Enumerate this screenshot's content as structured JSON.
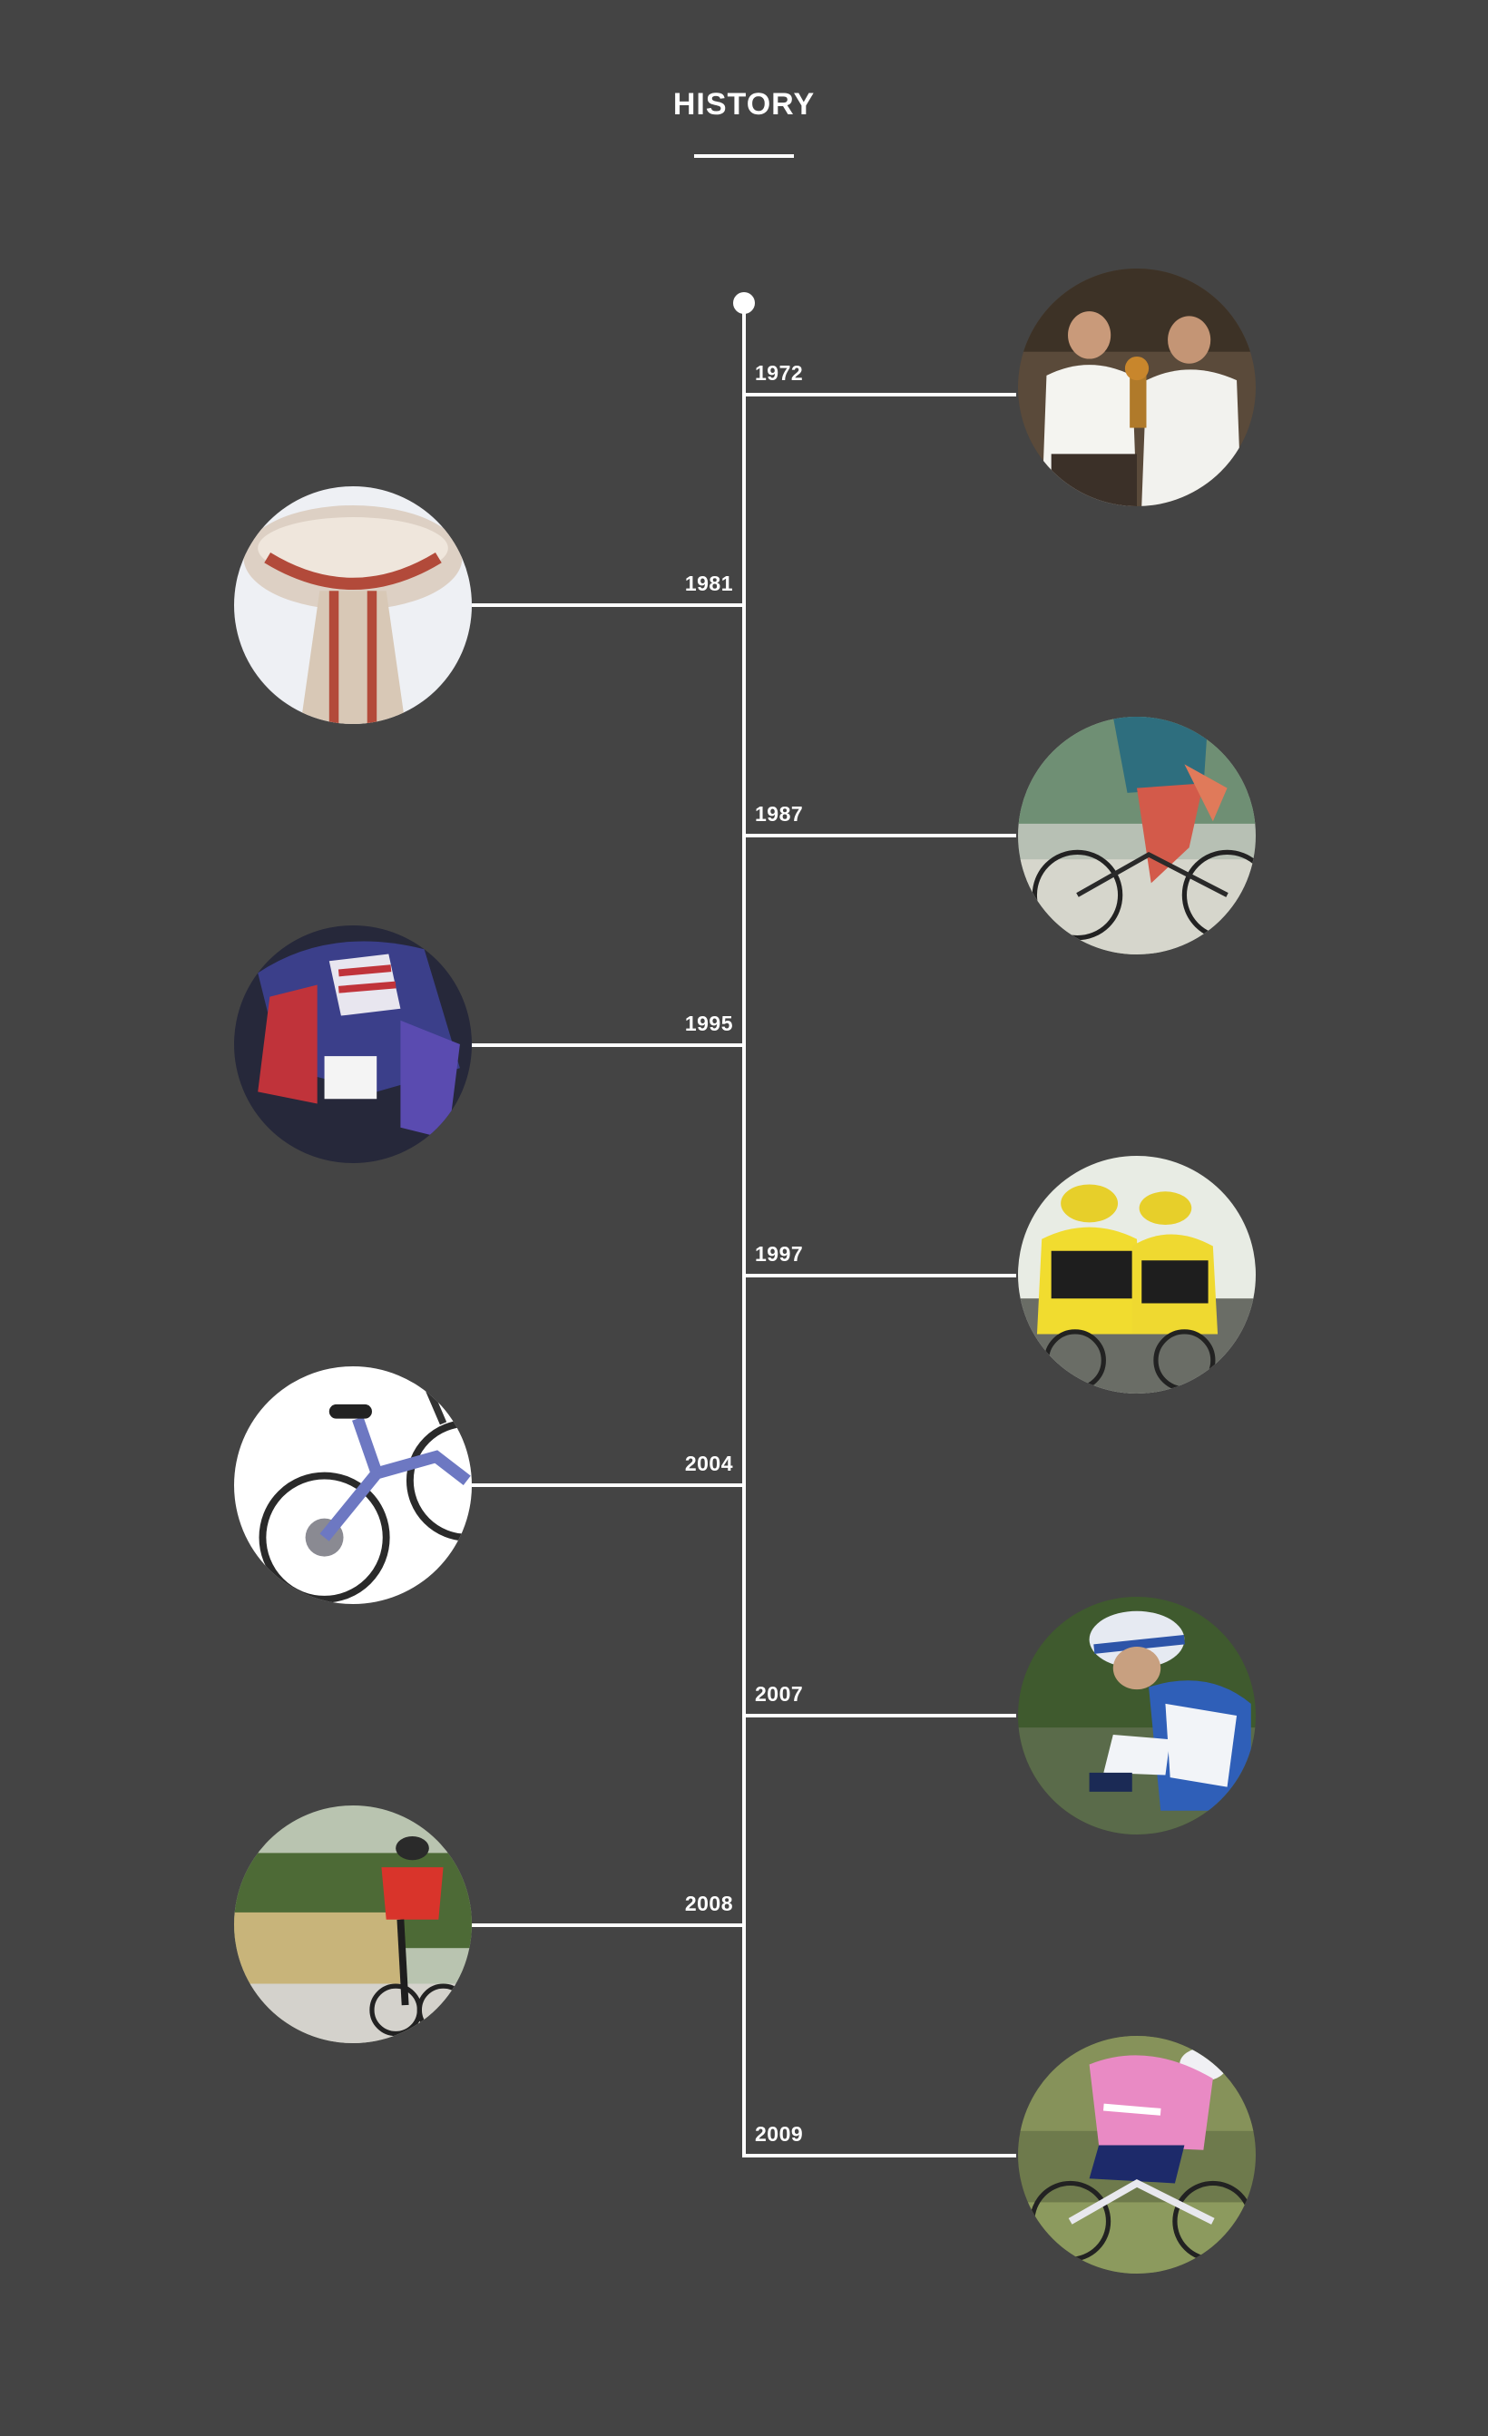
{
  "header": {
    "title": "HISTORY"
  },
  "timeline": [
    {
      "year": "1972",
      "side": "right",
      "icon": "founders-trophy-photo"
    },
    {
      "year": "1981",
      "side": "left",
      "icon": "giant-tower-photo"
    },
    {
      "year": "1987",
      "side": "right",
      "icon": "road-cyclist-photo"
    },
    {
      "year": "1995",
      "side": "left",
      "icon": "mountain-biker-photo"
    },
    {
      "year": "1997",
      "side": "right",
      "icon": "racing-team-photo"
    },
    {
      "year": "2004",
      "side": "left",
      "icon": "mountain-bike-photo"
    },
    {
      "year": "2007",
      "side": "right",
      "icon": "racer-helmet-photo"
    },
    {
      "year": "2008",
      "side": "left",
      "icon": "trail-riders-photo"
    },
    {
      "year": "2009",
      "side": "right",
      "icon": "pink-jersey-rider-photo"
    }
  ]
}
